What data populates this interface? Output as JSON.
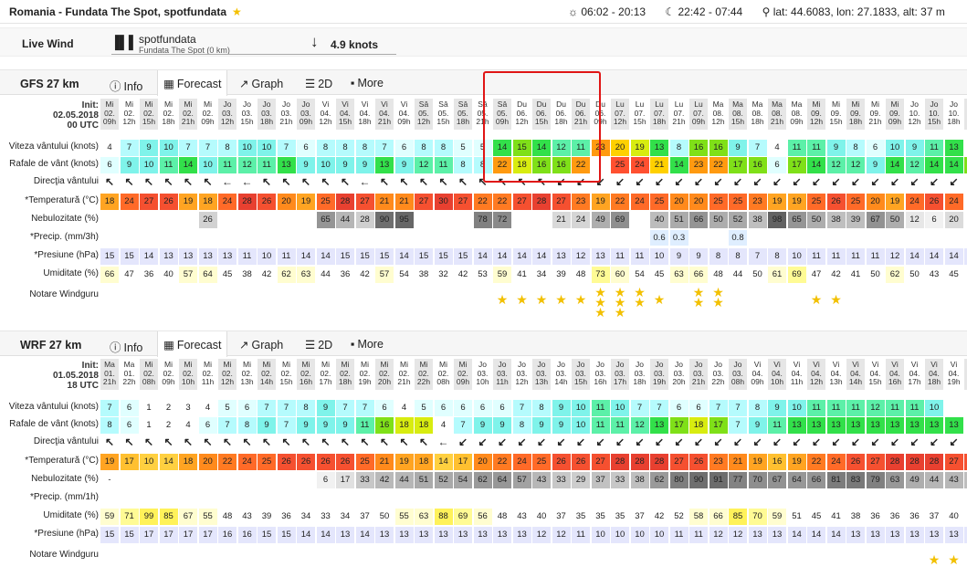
{
  "header": {
    "title": "Romania - Fundata The Spot, spotfundata",
    "star": "★",
    "sun": "☼ 06:02 - 20:13",
    "moon": "☾ 22:42 - 07:44",
    "location": "⚲ lat: 44.6083, lon: 27.1833, alt: 37 m"
  },
  "live": {
    "label": "Live Wind",
    "station": "spotfundata",
    "station_sub": "Fundata The Spot (0 km)",
    "value": "4.9 knots"
  },
  "tabs_labels": {
    "info": "Info",
    "forecast": "Forecast",
    "graph": "Graph",
    "twod": "2D",
    "more": "More"
  },
  "gfs": {
    "name": "GFS 27 km",
    "init": [
      "Init:",
      "02.05.2018",
      "00 UTC"
    ],
    "days": [
      "Mi",
      "Mi",
      "Mi",
      "Mi",
      "Mi",
      "Mi",
      "Jo",
      "Jo",
      "Jo",
      "Jo",
      "Jo",
      "Vi",
      "Vi",
      "Vi",
      "Vi",
      "Vi",
      "Sâ",
      "Sâ",
      "Sâ",
      "Sâ",
      "Sâ",
      "Du",
      "Du",
      "Du",
      "Du",
      "Du",
      "Lu",
      "Lu",
      "Lu",
      "Lu",
      "Lu",
      "Ma",
      "Ma",
      "Ma",
      "Ma",
      "Ma",
      "Mi",
      "Mi",
      "Mi",
      "Mi",
      "Mi",
      "Jo",
      "Jo",
      "Jo",
      "Jo"
    ],
    "dates": [
      "02.",
      "02.",
      "02.",
      "02.",
      "02.",
      "02.",
      "03.",
      "03.",
      "03.",
      "03.",
      "03.",
      "04.",
      "04.",
      "04.",
      "04.",
      "04.",
      "05.",
      "05.",
      "05.",
      "05.",
      "05.",
      "06.",
      "06.",
      "06.",
      "06.",
      "06.",
      "07.",
      "07.",
      "07.",
      "07.",
      "07.",
      "08.",
      "08.",
      "08.",
      "08.",
      "08.",
      "09.",
      "09.",
      "09.",
      "09.",
      "09.",
      "10.",
      "10.",
      "10.",
      "10."
    ],
    "hours": [
      "09h",
      "12h",
      "15h",
      "18h",
      "21h",
      "09h",
      "12h",
      "15h",
      "18h",
      "21h",
      "09h",
      "12h",
      "15h",
      "18h",
      "21h",
      "09h",
      "12h",
      "15h",
      "18h",
      "21h",
      "09h",
      "12h",
      "15h",
      "18h",
      "21h",
      "09h",
      "12h",
      "15h",
      "18h",
      "21h",
      "09h",
      "12h",
      "15h",
      "18h",
      "21h",
      "09h",
      "12h",
      "15h",
      "18h",
      "21h",
      "09h",
      "12h",
      "15h",
      "18h",
      "21h"
    ],
    "labels": [
      "Viteza vântului (knots)",
      "Rafale de vânt (knots)",
      "Direcţia vântului",
      "*Temperatură (°C)",
      "Nebulozitate (%)",
      "*Precip. (mm/3h)",
      "*Presiune (hPa)",
      "Umiditate (%)",
      "Notare Windguru"
    ],
    "wind": [
      4,
      7,
      9,
      10,
      7,
      7,
      8,
      10,
      10,
      7,
      6,
      8,
      8,
      8,
      7,
      6,
      8,
      8,
      5,
      5,
      14,
      15,
      14,
      12,
      11,
      23,
      20,
      19,
      13,
      8,
      16,
      16,
      9,
      7,
      4,
      11,
      11,
      9,
      8,
      6,
      10,
      9,
      11,
      13,
      ""
    ],
    "gust": [
      6,
      9,
      10,
      11,
      14,
      10,
      11,
      12,
      11,
      13,
      9,
      10,
      9,
      9,
      13,
      9,
      12,
      11,
      8,
      8,
      22,
      18,
      16,
      16,
      22,
      "",
      25,
      24,
      21,
      14,
      23,
      22,
      17,
      16,
      6,
      17,
      14,
      12,
      12,
      9,
      14,
      12,
      14,
      14,
      17
    ],
    "dir": [
      "↖",
      "↖",
      "↖",
      "↖",
      "↖",
      "↖",
      "←",
      "←",
      "↖",
      "↖",
      "↖",
      "↖",
      "↖",
      "←",
      "↖",
      "↖",
      "↖",
      "↖",
      "↖",
      "↖",
      "↖",
      "↖",
      "↖",
      "↙",
      "↙",
      "↙",
      "↙",
      "↙",
      "↙",
      "↙",
      "↙",
      "↙",
      "↙",
      "↙",
      "↙",
      "↙",
      "↙",
      "↙",
      "↙",
      "↙",
      "↙",
      "↙",
      "↙",
      "↙",
      "↙"
    ],
    "temp": [
      18,
      24,
      27,
      26,
      19,
      18,
      24,
      28,
      26,
      20,
      19,
      25,
      28,
      27,
      21,
      21,
      27,
      30,
      27,
      22,
      22,
      27,
      28,
      27,
      23,
      19,
      22,
      24,
      25,
      20,
      20,
      25,
      25,
      23,
      19,
      19,
      25,
      26,
      25,
      20,
      19,
      24,
      26,
      24,
      ""
    ],
    "cloud": [
      "",
      "",
      "",
      "",
      "",
      "26",
      "",
      "",
      "",
      "",
      "",
      "65",
      "44",
      "28",
      "90",
      "95",
      "",
      "",
      "",
      "78",
      "72",
      "",
      "",
      "21",
      "24",
      "49",
      "69",
      "",
      "40",
      "51",
      "66",
      "50",
      "52",
      "38",
      "98",
      "65",
      "50",
      "38",
      "39",
      "67",
      "50",
      "12",
      "6",
      "20",
      ""
    ],
    "precip": [
      "",
      "",
      "",
      "",
      "",
      "",
      "",
      "",
      "",
      "",
      "",
      "",
      "",
      "",
      "",
      "",
      "",
      "",
      "",
      "",
      "",
      "",
      "",
      "",
      "",
      "",
      "",
      "",
      "0.6",
      "0.3",
      "",
      "",
      "0.8",
      "",
      "",
      "",
      "",
      "",
      "",
      "",
      "",
      "",
      "",
      "",
      ""
    ],
    "press": [
      15,
      15,
      14,
      13,
      13,
      13,
      13,
      11,
      10,
      11,
      14,
      14,
      15,
      15,
      15,
      14,
      15,
      15,
      15,
      14,
      14,
      14,
      14,
      13,
      12,
      13,
      11,
      11,
      10,
      9,
      9,
      8,
      8,
      7,
      8,
      10,
      11,
      11,
      11,
      11,
      12,
      14,
      14,
      14,
      14
    ],
    "hum": [
      66,
      47,
      36,
      40,
      57,
      64,
      45,
      38,
      42,
      62,
      63,
      44,
      36,
      42,
      57,
      54,
      38,
      32,
      42,
      53,
      59,
      41,
      34,
      39,
      48,
      73,
      60,
      54,
      45,
      63,
      66,
      48,
      44,
      50,
      61,
      69,
      47,
      42,
      41,
      50,
      62,
      50,
      43,
      45,
      ""
    ],
    "stars": [
      0,
      0,
      0,
      0,
      0,
      0,
      0,
      0,
      0,
      0,
      0,
      0,
      0,
      0,
      0,
      0,
      0,
      0,
      0,
      0,
      1,
      1,
      1,
      1,
      1,
      3,
      3,
      2,
      1,
      0,
      2,
      2,
      0,
      0,
      0,
      0,
      1,
      1,
      0,
      0,
      0,
      0,
      0,
      0,
      1
    ]
  },
  "wrf": {
    "name": "WRF 27 km",
    "init": [
      "Init:",
      "01.05.2018",
      "18 UTC"
    ],
    "days": [
      "Ma",
      "Ma",
      "Mi",
      "Mi",
      "Mi",
      "Mi",
      "Mi",
      "Mi",
      "Mi",
      "Mi",
      "Mi",
      "Mi",
      "Mi",
      "Mi",
      "Mi",
      "Mi",
      "Mi",
      "Mi",
      "Mi",
      "Jo",
      "Jo",
      "Jo",
      "Jo",
      "Jo",
      "Jo",
      "Jo",
      "Jo",
      "Jo",
      "Jo",
      "Jo",
      "Jo",
      "Jo",
      "Jo",
      "Vi",
      "Vi",
      "Vi",
      "Vi",
      "Vi",
      "Vi",
      "Vi",
      "Vi",
      "Vi",
      "Vi",
      "Vi",
      "Vi"
    ],
    "dates": [
      "01.",
      "01.",
      "02.",
      "02.",
      "02.",
      "02.",
      "02.",
      "02.",
      "02.",
      "02.",
      "02.",
      "02.",
      "02.",
      "02.",
      "02.",
      "02.",
      "02.",
      "02.",
      "02.",
      "03.",
      "03.",
      "03.",
      "03.",
      "03.",
      "03.",
      "03.",
      "03.",
      "03.",
      "03.",
      "03.",
      "03.",
      "03.",
      "03.",
      "04.",
      "04.",
      "04.",
      "04.",
      "04.",
      "04.",
      "04.",
      "04.",
      "04.",
      "04.",
      "04.",
      "04."
    ],
    "hours": [
      "21h",
      "22h",
      "08h",
      "09h",
      "10h",
      "11h",
      "12h",
      "13h",
      "14h",
      "15h",
      "16h",
      "17h",
      "18h",
      "19h",
      "20h",
      "21h",
      "22h",
      "08h",
      "09h",
      "10h",
      "11h",
      "12h",
      "13h",
      "14h",
      "15h",
      "16h",
      "17h",
      "18h",
      "19h",
      "20h",
      "21h",
      "22h",
      "08h",
      "09h",
      "10h",
      "11h",
      "12h",
      "13h",
      "14h",
      "15h",
      "16h",
      "17h",
      "18h",
      "19h",
      "20h"
    ],
    "labels": [
      "Viteza vântului (knots)",
      "Rafale de vânt (knots)",
      "Direcţia vântului",
      "*Temperatură (°C)",
      "Nebulozitate (%)",
      "*Precip. (mm/1h)",
      "Umiditate (%)",
      "*Presiune (hPa)",
      "Notare Windguru"
    ],
    "wind": [
      7,
      6,
      1,
      2,
      3,
      4,
      5,
      6,
      7,
      7,
      8,
      9,
      7,
      7,
      6,
      4,
      5,
      6,
      6,
      6,
      6,
      7,
      8,
      9,
      10,
      11,
      10,
      7,
      7,
      6,
      6,
      7,
      7,
      8,
      9,
      10,
      11,
      11,
      11,
      12,
      11,
      11,
      10,
      "",
      ""
    ],
    "gust": [
      8,
      6,
      1,
      2,
      4,
      6,
      7,
      8,
      9,
      7,
      9,
      9,
      9,
      11,
      16,
      18,
      18,
      4,
      7,
      9,
      9,
      8,
      9,
      9,
      10,
      11,
      11,
      12,
      13,
      17,
      18,
      17,
      7,
      9,
      11,
      13,
      13,
      13,
      13,
      13,
      13,
      13,
      13,
      13,
      ""
    ],
    "dir": [
      "↖",
      "↖",
      "↖",
      "↖",
      "↖",
      "↖",
      "↖",
      "↖",
      "↖",
      "↖",
      "↖",
      "↖",
      "↖",
      "↖",
      "↖",
      "↖",
      "↖",
      "←",
      "↙",
      "↙",
      "↙",
      "↙",
      "↙",
      "↙",
      "↙",
      "↙",
      "↙",
      "↙",
      "↙",
      "↙",
      "↙",
      "↙",
      "↙",
      "↙",
      "↙",
      "↙",
      "↙",
      "↙",
      "↙",
      "↙",
      "↙",
      "↙",
      "↙",
      "↙",
      "↙"
    ],
    "temp": [
      19,
      17,
      10,
      14,
      18,
      20,
      22,
      24,
      25,
      26,
      26,
      26,
      26,
      25,
      21,
      19,
      18,
      14,
      17,
      20,
      22,
      24,
      25,
      26,
      26,
      27,
      28,
      28,
      28,
      27,
      26,
      23,
      21,
      19,
      16,
      19,
      22,
      24,
      26,
      27,
      28,
      28,
      28,
      27,
      26
    ],
    "cloud": [
      "-",
      "",
      "",
      "",
      "",
      "",
      "",
      "",
      "",
      "",
      "",
      "6",
      "17",
      "33",
      "42",
      "44",
      "51",
      "52",
      "54",
      "62",
      "64",
      "57",
      "43",
      "33",
      "29",
      "37",
      "33",
      "38",
      "62",
      "80",
      "90",
      "91",
      "77",
      "70",
      "67",
      "64",
      "66",
      "81",
      "83",
      "79",
      "63",
      "49",
      "44",
      "43",
      "39"
    ],
    "precip": [
      "",
      "",
      "",
      "",
      "",
      "",
      "",
      "",
      "",
      "",
      "",
      "",
      "",
      "",
      "",
      "",
      "",
      "",
      "",
      "",
      "",
      "",
      "",
      "",
      "",
      "",
      "",
      "",
      "",
      "",
      "",
      "",
      "",
      "",
      "",
      "",
      "",
      "",
      "",
      "",
      "",
      "",
      "",
      "",
      ""
    ],
    "hum": [
      59,
      71,
      99,
      85,
      67,
      55,
      48,
      43,
      39,
      36,
      34,
      33,
      34,
      37,
      50,
      55,
      63,
      88,
      69,
      56,
      48,
      43,
      40,
      37,
      35,
      35,
      35,
      37,
      42,
      52,
      58,
      66,
      85,
      70,
      59,
      51,
      45,
      41,
      38,
      36,
      36,
      36,
      37,
      40,
      ""
    ],
    "press": [
      15,
      15,
      17,
      17,
      17,
      17,
      16,
      16,
      15,
      15,
      14,
      14,
      13,
      14,
      13,
      13,
      13,
      13,
      13,
      13,
      13,
      13,
      12,
      12,
      11,
      10,
      10,
      10,
      10,
      11,
      11,
      12,
      12,
      13,
      13,
      14,
      14,
      14,
      13,
      13,
      13,
      13,
      13,
      13,
      13
    ],
    "stars": [
      0,
      0,
      0,
      0,
      0,
      0,
      0,
      0,
      0,
      0,
      0,
      0,
      0,
      0,
      0,
      0,
      0,
      0,
      0,
      0,
      0,
      0,
      0,
      0,
      0,
      0,
      0,
      0,
      0,
      0,
      0,
      0,
      0,
      0,
      0,
      0,
      0,
      0,
      0,
      0,
      0,
      0,
      1,
      1,
      1
    ]
  }
}
